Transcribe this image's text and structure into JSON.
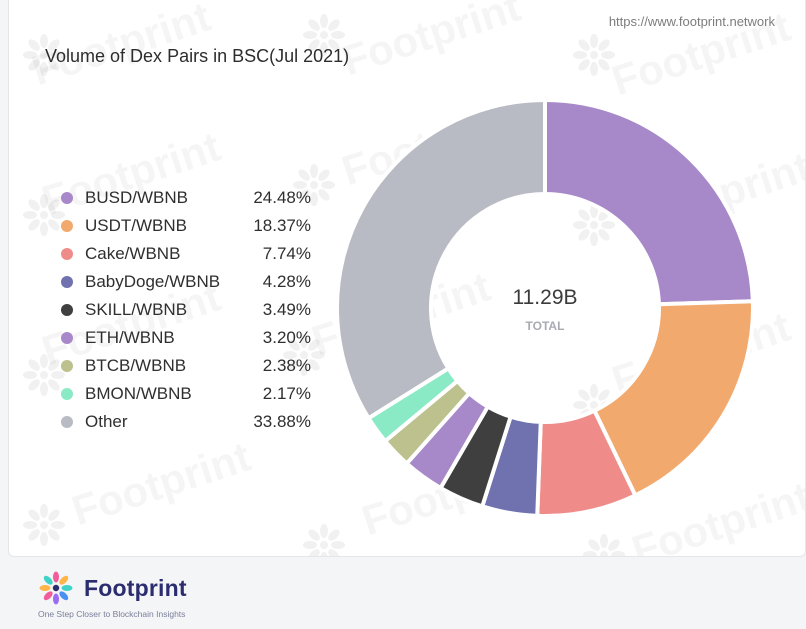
{
  "header": {
    "url": "https://www.footprint.network",
    "title": "Volume of Dex Pairs in BSC(Jul 2021)"
  },
  "watermark": {
    "text": "Footprint"
  },
  "chart_data": {
    "type": "pie",
    "style": "donut",
    "title": "Volume of Dex Pairs in BSC(Jul 2021)",
    "center_value": "11.29B",
    "center_label": "TOTAL",
    "legend_position": "left",
    "slices": [
      {
        "label": "BUSD/WBNB",
        "value": 24.48,
        "display": "24.48%",
        "color": "#a788c8"
      },
      {
        "label": "USDT/WBNB",
        "value": 18.37,
        "display": "18.37%",
        "color": "#f2a96d"
      },
      {
        "label": "Cake/WBNB",
        "value": 7.74,
        "display": "7.74%",
        "color": "#ef8c8a"
      },
      {
        "label": "BabyDoge/WBNB",
        "value": 4.28,
        "display": "4.28%",
        "color": "#6f72ae"
      },
      {
        "label": "SKILL/WBNB",
        "value": 3.49,
        "display": "3.49%",
        "color": "#3f3f3f"
      },
      {
        "label": "ETH/WBNB",
        "value": 3.2,
        "display": "3.20%",
        "color": "#a788c8"
      },
      {
        "label": "BTCB/WBNB",
        "value": 2.38,
        "display": "2.38%",
        "color": "#bcc18d"
      },
      {
        "label": "BMON/WBNB",
        "value": 2.17,
        "display": "2.17%",
        "color": "#8beac6"
      },
      {
        "label": "Other",
        "value": 33.88,
        "display": "33.88%",
        "color": "#b8bac4"
      }
    ]
  },
  "footer": {
    "brand": "Footprint",
    "tagline": "One Step Closer to Blockchain Insights"
  }
}
